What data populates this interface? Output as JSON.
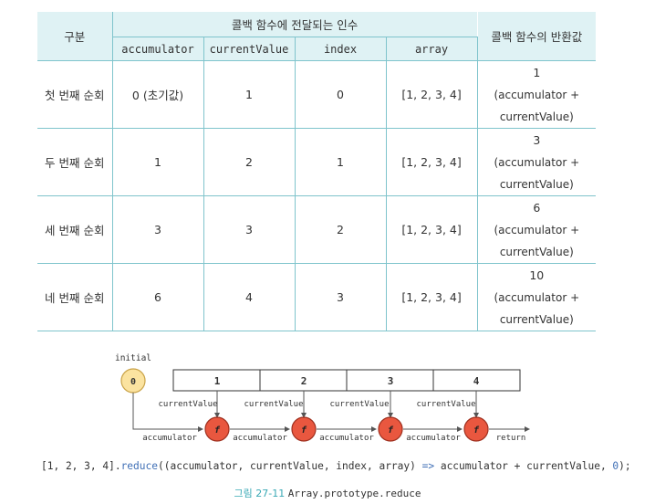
{
  "table": {
    "header_row_label": "구분",
    "header_args_group": "콜백 함수에 전달되는 인수",
    "header_return": "콜백 함수의 반환값",
    "arg_columns": [
      "accumulator",
      "currentValue",
      "index",
      "array"
    ],
    "rows": [
      {
        "label": "첫 번째 순회",
        "accumulator": "0 (초기값)",
        "currentValue": "1",
        "index": "0",
        "array": "[1, 2, 3, 4]",
        "result": "1",
        "result_expr": "(accumulator + currentValue)"
      },
      {
        "label": "두 번째 순회",
        "accumulator": "1",
        "currentValue": "2",
        "index": "1",
        "array": "[1, 2, 3, 4]",
        "result": "3",
        "result_expr": "(accumulator + currentValue)"
      },
      {
        "label": "세 번째 순회",
        "accumulator": "3",
        "currentValue": "3",
        "index": "2",
        "array": "[1, 2, 3, 4]",
        "result": "6",
        "result_expr": "(accumulator + currentValue)"
      },
      {
        "label": "네 번째 순회",
        "accumulator": "6",
        "currentValue": "4",
        "index": "3",
        "array": "[1, 2, 3, 4]",
        "result": "10",
        "result_expr": "(accumulator + currentValue)"
      }
    ]
  },
  "diagram": {
    "initial_label": "initial",
    "initial_value": "0",
    "array_cells": [
      "1",
      "2",
      "3",
      "4"
    ],
    "current_value_label": "currentValue",
    "accumulator_label": "accumulator",
    "function_symbol": "f",
    "return_label": "return",
    "colors": {
      "initial_fill": "#fbe3a0",
      "initial_stroke": "#c9a246",
      "fn_fill": "#e9573f",
      "fn_stroke": "#9e2f1e",
      "line": "#555555"
    }
  },
  "code": {
    "prefix": "[1, 2, 3, 4].",
    "method": "reduce",
    "args_before_arrow": "((accumulator, currentValue, index, array) ",
    "arrow": "=>",
    "body": " accumulator + currentValue, ",
    "initial": "0",
    "suffix": ");"
  },
  "caption": {
    "figure": "그림 27-11",
    "api": "Array.prototype.reduce"
  }
}
